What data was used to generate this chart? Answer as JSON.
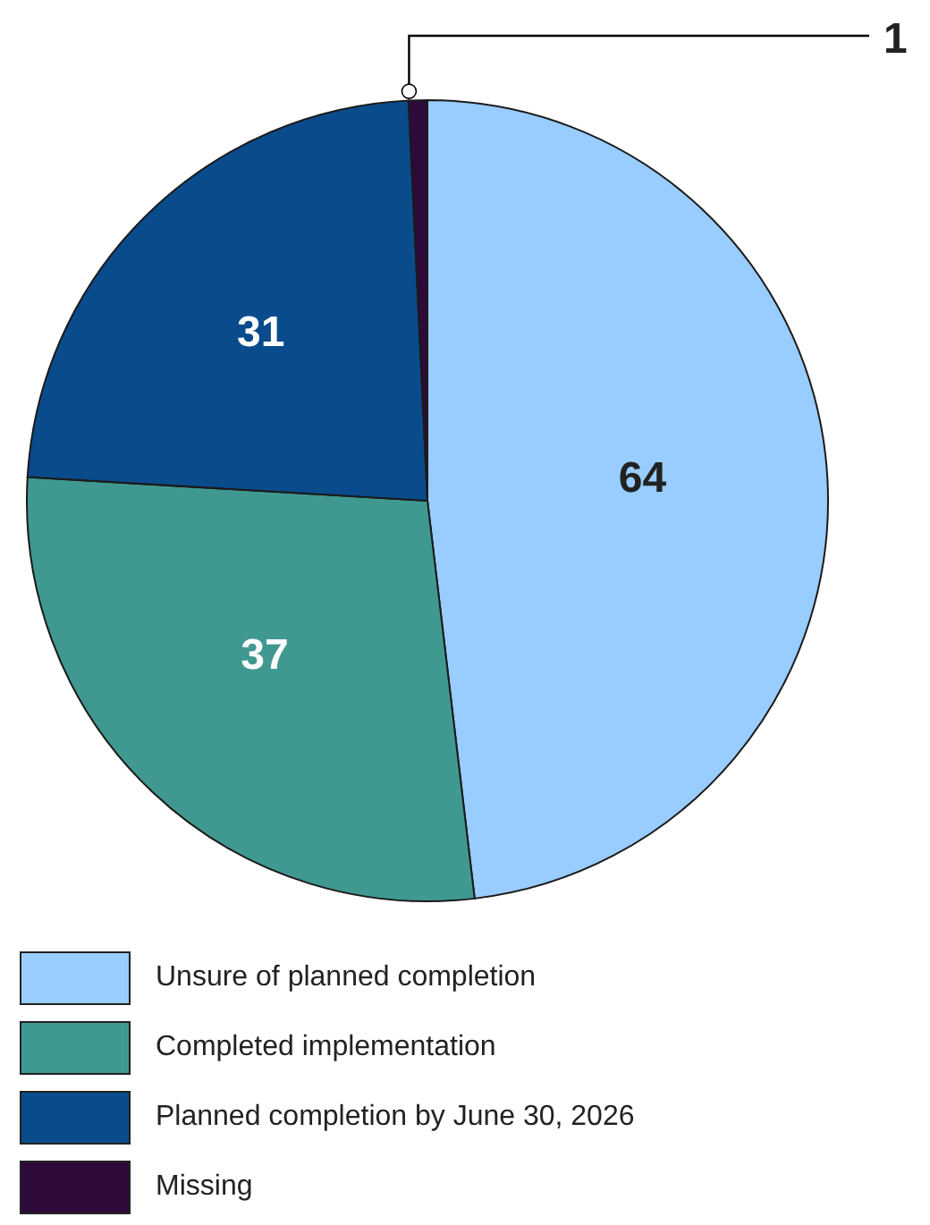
{
  "chart_data": {
    "type": "pie",
    "categories": [
      "Unsure of planned completion",
      "Completed implementation",
      "Planned completion by June 30, 2026",
      "Missing"
    ],
    "values": [
      64,
      37,
      31,
      1
    ],
    "colors": [
      "#99ccff",
      "#409990",
      "#0a4b8c",
      "#2e0a3a"
    ],
    "data_labels": true,
    "legend": "bottom"
  }
}
